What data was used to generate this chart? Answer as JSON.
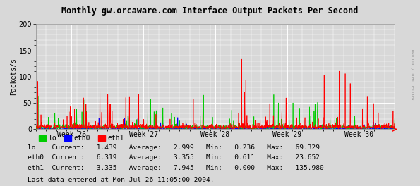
{
  "title": "Monthly gw.orcaware.com Interface Output Packets Per Second",
  "ylabel": "Packets/s",
  "yticks": [
    0,
    50,
    100,
    150,
    200
  ],
  "ylim": [
    0,
    200
  ],
  "week_labels": [
    "Week 26",
    "Week 27",
    "Week 28",
    "Week 29",
    "Week 30"
  ],
  "background_color": "#d8d8d8",
  "plot_bg_color": "#d8d8d8",
  "grid_color": "#ffffff",
  "lo_color": "#00cc00",
  "eth0_color": "#0000ff",
  "eth1_color": "#ff0000",
  "title_color": "#000000",
  "stats": {
    "lo": {
      "current": 1.439,
      "average": 2.999,
      "min": 0.236,
      "max": 69.329
    },
    "eth0": {
      "current": 6.319,
      "average": 3.355,
      "min": 0.611,
      "max": 23.652
    },
    "eth1": {
      "current": 3.335,
      "average": 7.945,
      "min": 0.0,
      "max": 135.98
    }
  },
  "footer": "Last data entered at Mon Jul 26 11:05:00 2004.",
  "n_points": 1500,
  "num_weeks": 5,
  "seed": 42
}
